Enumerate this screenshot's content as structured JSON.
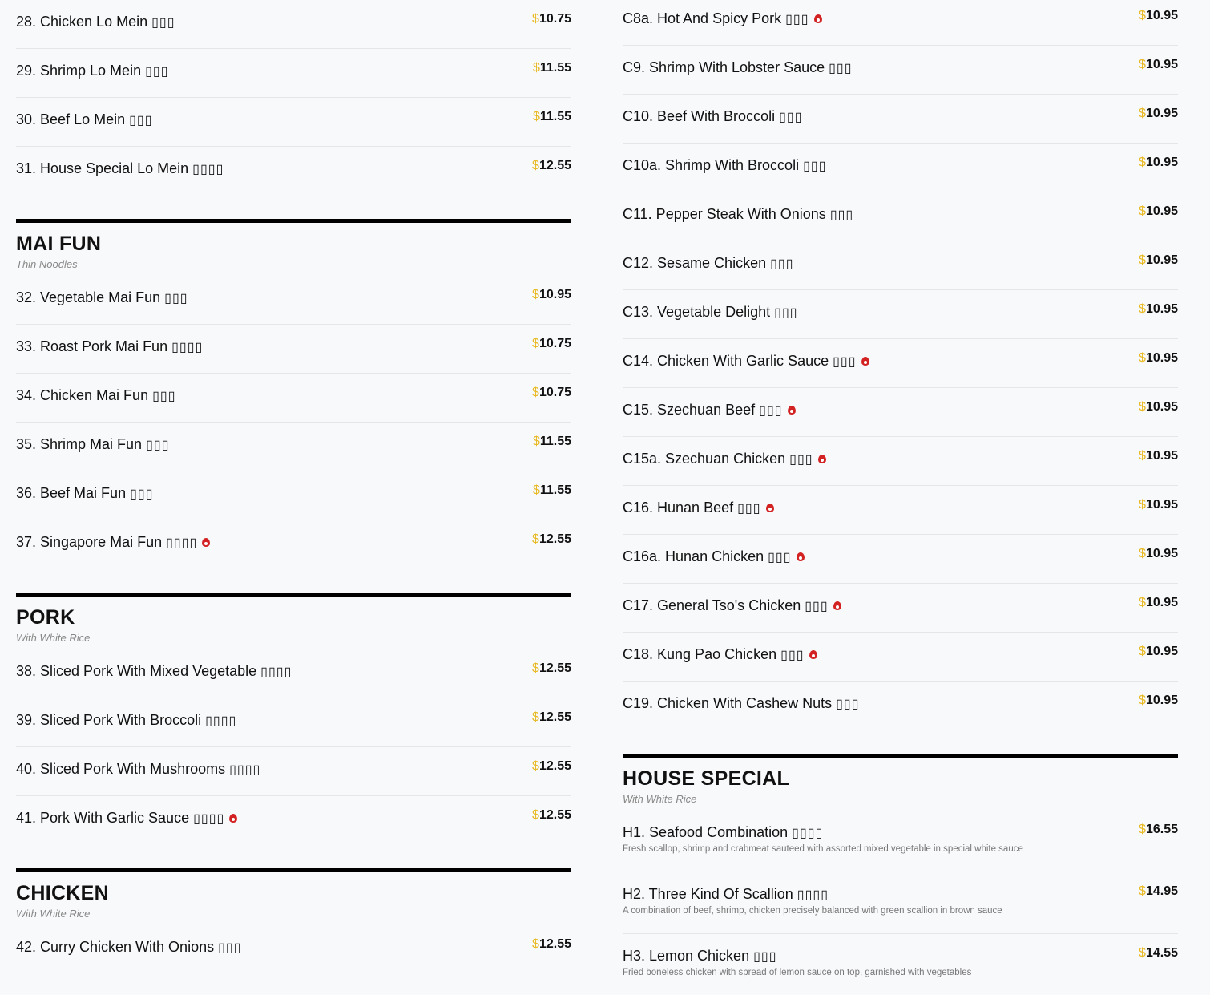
{
  "colors": {
    "price_symbol": "#e8b923",
    "spicy": "#d32222",
    "section_bar": "#000000"
  },
  "left": [
    {
      "title": null,
      "subtitle": null,
      "items": [
        {
          "name": "28. Chicken Lo Mein",
          "cn": "▯▯▯",
          "price": "10.75"
        },
        {
          "name": "29. Shrimp Lo Mein",
          "cn": "▯▯▯",
          "price": "11.55"
        },
        {
          "name": "30. Beef Lo Mein",
          "cn": "▯▯▯",
          "price": "11.55"
        },
        {
          "name": "31. House Special Lo Mein",
          "cn": "▯▯▯▯",
          "price": "12.55"
        }
      ]
    },
    {
      "title": "MAI FUN",
      "subtitle": "Thin Noodles",
      "items": [
        {
          "name": "32. Vegetable Mai Fun",
          "cn": "▯▯▯",
          "price": "10.95"
        },
        {
          "name": "33. Roast Pork Mai Fun",
          "cn": "▯▯▯▯",
          "price": "10.75"
        },
        {
          "name": "34. Chicken Mai Fun",
          "cn": "▯▯▯",
          "price": "10.75"
        },
        {
          "name": "35. Shrimp Mai Fun",
          "cn": "▯▯▯",
          "price": "11.55"
        },
        {
          "name": "36. Beef Mai Fun",
          "cn": "▯▯▯",
          "price": "11.55"
        },
        {
          "name": "37. Singapore Mai Fun",
          "cn": "▯▯▯▯",
          "price": "12.55",
          "spicy": true
        }
      ]
    },
    {
      "title": "PORK",
      "subtitle": "With White Rice",
      "items": [
        {
          "name": "38. Sliced Pork With Mixed Vegetable",
          "cn": "▯▯▯▯",
          "price": "12.55"
        },
        {
          "name": "39. Sliced Pork With Broccoli",
          "cn": "▯▯▯▯",
          "price": "12.55"
        },
        {
          "name": "40. Sliced Pork With Mushrooms",
          "cn": "▯▯▯▯",
          "price": "12.55"
        },
        {
          "name": "41. Pork With Garlic Sauce",
          "cn": "▯▯▯▯",
          "price": "12.55",
          "spicy": true
        }
      ]
    },
    {
      "title": "CHICKEN",
      "subtitle": "With White Rice",
      "items": [
        {
          "name": "42. Curry Chicken With Onions",
          "cn": "▯▯▯",
          "price": "12.55"
        }
      ]
    }
  ],
  "right": [
    {
      "title": null,
      "subtitle": null,
      "items": [
        {
          "name": "C8a. Hot And Spicy Pork",
          "cn": "▯▯▯",
          "price": "10.95",
          "spicy": true
        },
        {
          "name": "C9. Shrimp With Lobster Sauce",
          "cn": "▯▯▯",
          "price": "10.95"
        },
        {
          "name": "C10. Beef With Broccoli",
          "cn": "▯▯▯",
          "price": "10.95"
        },
        {
          "name": "C10a. Shrimp With Broccoli",
          "cn": "▯▯▯",
          "price": "10.95"
        },
        {
          "name": "C11. Pepper Steak With Onions",
          "cn": "▯▯▯",
          "price": "10.95"
        },
        {
          "name": "C12. Sesame Chicken",
          "cn": "▯▯▯",
          "price": "10.95"
        },
        {
          "name": "C13. Vegetable Delight",
          "cn": "▯▯▯",
          "price": "10.95"
        },
        {
          "name": "C14. Chicken With Garlic Sauce",
          "cn": "▯▯▯",
          "price": "10.95",
          "spicy": true
        },
        {
          "name": "C15. Szechuan Beef",
          "cn": "▯▯▯",
          "price": "10.95",
          "spicy": true
        },
        {
          "name": "C15a. Szechuan Chicken",
          "cn": "▯▯▯",
          "price": "10.95",
          "spicy": true
        },
        {
          "name": "C16. Hunan Beef",
          "cn": "▯▯▯",
          "price": "10.95",
          "spicy": true
        },
        {
          "name": "C16a. Hunan Chicken",
          "cn": "▯▯▯",
          "price": "10.95",
          "spicy": true
        },
        {
          "name": "C17. General Tso's Chicken",
          "cn": "▯▯▯",
          "price": "10.95",
          "spicy": true
        },
        {
          "name": "C18. Kung Pao Chicken",
          "cn": "▯▯▯",
          "price": "10.95",
          "spicy": true
        },
        {
          "name": "C19. Chicken With Cashew Nuts",
          "cn": "▯▯▯",
          "price": "10.95"
        }
      ]
    },
    {
      "title": "HOUSE SPECIAL",
      "subtitle": "With White Rice",
      "items": [
        {
          "name": "H1. Seafood Combination",
          "cn": "▯▯▯▯",
          "price": "16.55",
          "desc": "Fresh scallop, shrimp and crabmeat sauteed with assorted mixed vegetable in special white sauce"
        },
        {
          "name": "H2. Three Kind Of Scallion",
          "cn": "▯▯▯▯",
          "price": "14.95",
          "desc": "A combination of beef, shrimp, chicken precisely balanced with green scallion in brown sauce"
        },
        {
          "name": "H3. Lemon Chicken",
          "cn": "▯▯▯",
          "price": "14.55",
          "desc": "Fried boneless chicken with spread of lemon sauce on top, garnished with vegetables"
        }
      ]
    }
  ],
  "currency": "$"
}
